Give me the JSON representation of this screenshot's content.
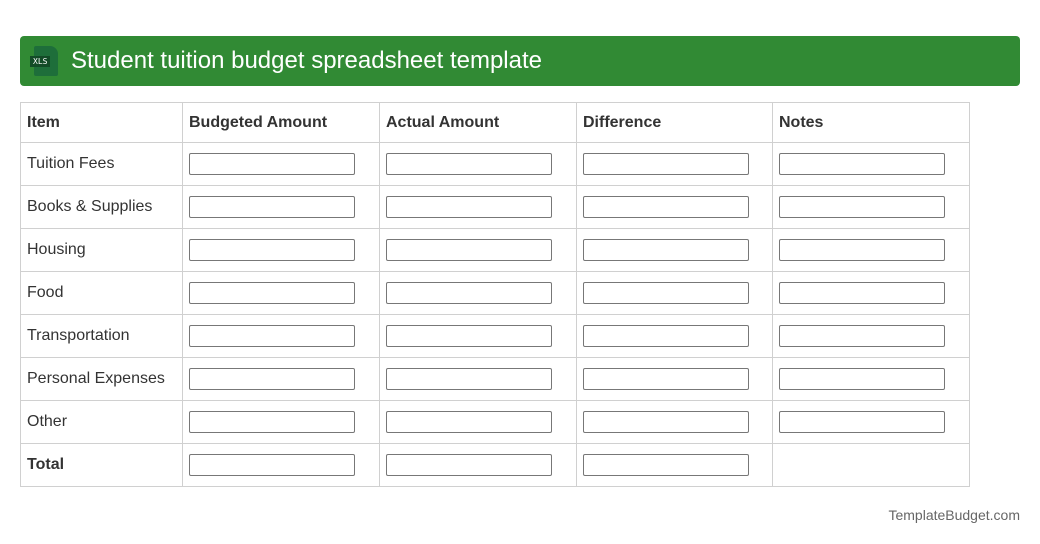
{
  "header": {
    "title": "Student tuition budget spreadsheet template",
    "icon": "xls-file-icon",
    "icon_label": "XLS"
  },
  "table": {
    "columns": [
      "Item",
      "Budgeted Amount",
      "Actual Amount",
      "Difference",
      "Notes"
    ],
    "rows": [
      "Tuition Fees",
      "Books & Supplies",
      "Housing",
      "Food",
      "Transportation",
      "Personal Expenses",
      "Other"
    ],
    "total_label": "Total"
  },
  "footer": {
    "text": "TemplateBudget.com"
  }
}
